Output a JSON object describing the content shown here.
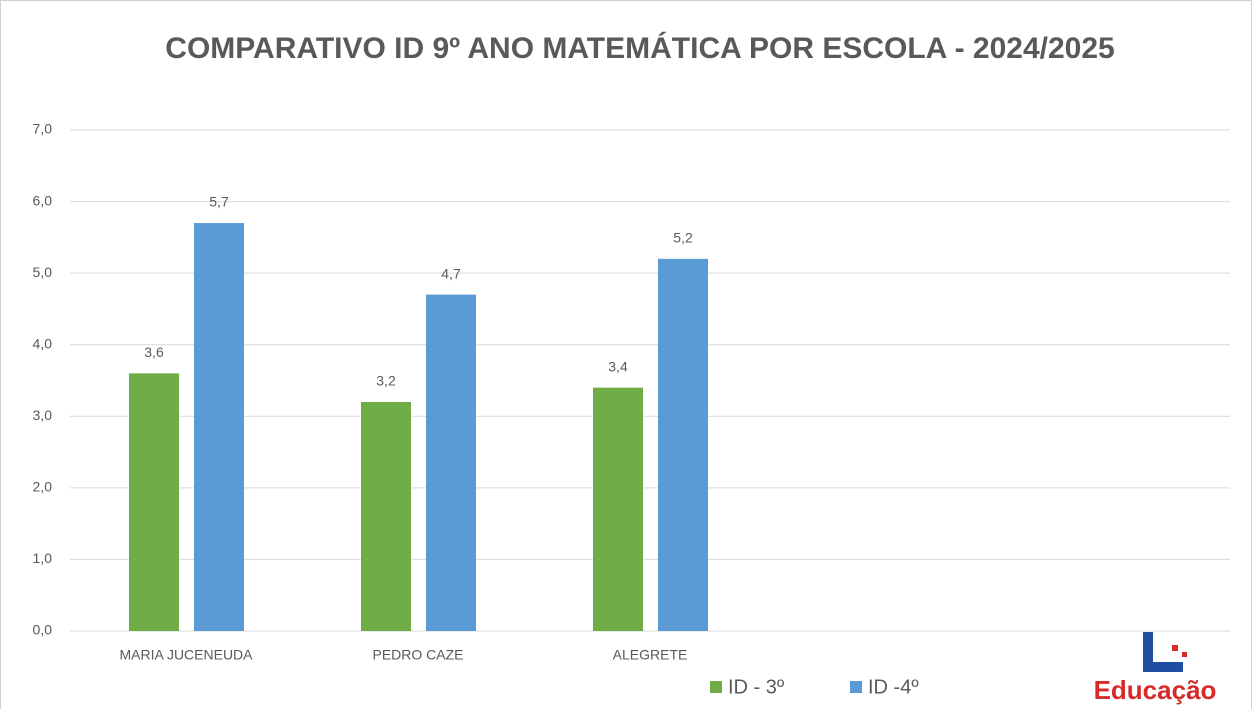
{
  "chart_data": {
    "type": "bar",
    "title": "COMPARATIVO ID 9º ANO MATEMÁTICA POR ESCOLA - 2024/2025",
    "categories": [
      "MARIA JUCENEUDA",
      "PEDRO CAZE",
      "ALEGRETE",
      null,
      null
    ],
    "series": [
      {
        "name": "ID - 3º",
        "color": "#70ad47",
        "values": [
          3.6,
          3.2,
          3.4,
          null,
          null
        ],
        "value_labels": [
          "3,6",
          "3,2",
          "3,4",
          null,
          null
        ]
      },
      {
        "name": "ID -4º",
        "color": "#5b9bd5",
        "values": [
          5.7,
          4.7,
          5.2,
          null,
          null
        ],
        "value_labels": [
          "5,7",
          "4,7",
          "5,2",
          null,
          null
        ]
      }
    ],
    "ylim": [
      0,
      7
    ],
    "yticks": [
      {
        "value": 0,
        "label": "0,0"
      },
      {
        "value": 1,
        "label": "1,0"
      },
      {
        "value": 2,
        "label": "2,0"
      },
      {
        "value": 3,
        "label": "3,0"
      },
      {
        "value": 4,
        "label": "4,0"
      },
      {
        "value": 5,
        "label": "5,0"
      },
      {
        "value": 6,
        "label": "6,0"
      },
      {
        "value": 7,
        "label": "7,0"
      }
    ],
    "grid": true,
    "legend": "bottom",
    "logo_text": "Educação"
  }
}
